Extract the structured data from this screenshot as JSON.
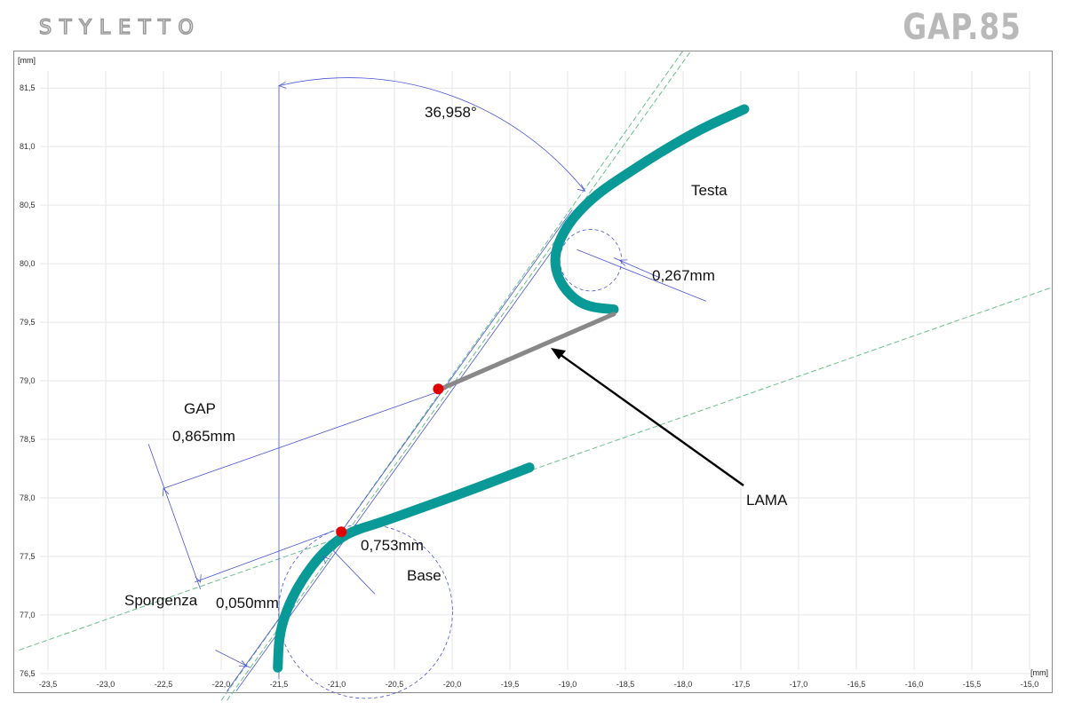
{
  "header": {
    "brand": "STYLETTO",
    "model": "GAP.85"
  },
  "axes": {
    "x_unit": "[mm]",
    "y_unit": "[mm]",
    "x_ticks": [
      "-23,5",
      "-23,0",
      "-22,5",
      "-22,0",
      "-21,5",
      "-21,0",
      "-20,5",
      "-20,0",
      "-19,5",
      "-19,0",
      "-18,5",
      "-18,0",
      "-17,5",
      "-17,0",
      "-16,5",
      "-16,0",
      "-15,5",
      "-15,0"
    ],
    "y_ticks": [
      "81,5",
      "81,0",
      "80,5",
      "80,0",
      "79,5",
      "79,0",
      "78,5",
      "78,0",
      "77,5",
      "77,0",
      "76,5"
    ]
  },
  "chart_data": {
    "type": "diagram",
    "xlim": [
      -23.8,
      -14.8
    ],
    "ylim": [
      76.34,
      81.82
    ],
    "grid": true,
    "x_ticks": [
      -23.5,
      -23.0,
      -22.5,
      -22.0,
      -21.5,
      -21.0,
      -20.5,
      -20.0,
      -19.5,
      -19.0,
      -18.5,
      -18.0,
      -17.5,
      -17.0,
      -16.5,
      -16.0,
      -15.5,
      -15.0
    ],
    "y_ticks": [
      81.5,
      81.0,
      80.5,
      80.0,
      79.5,
      79.0,
      78.5,
      78.0,
      77.5,
      77.0,
      76.5
    ],
    "testa_curve": [
      [
        -17.47,
        81.32
      ],
      [
        -17.85,
        81.15
      ],
      [
        -18.2,
        80.95
      ],
      [
        -18.5,
        80.76
      ],
      [
        -18.74,
        80.6
      ],
      [
        -18.93,
        80.42
      ],
      [
        -19.05,
        80.25
      ],
      [
        -19.12,
        80.05
      ],
      [
        -19.08,
        79.86
      ],
      [
        -18.96,
        79.71
      ],
      [
        -18.82,
        79.63
      ],
      [
        -18.6,
        79.61
      ]
    ],
    "base_curve": [
      [
        -19.33,
        78.26
      ],
      [
        -19.8,
        78.08
      ],
      [
        -20.25,
        77.92
      ],
      [
        -20.62,
        77.79
      ],
      [
        -20.82,
        77.73
      ],
      [
        -20.95,
        77.67
      ],
      [
        -21.1,
        77.55
      ],
      [
        -21.23,
        77.4
      ],
      [
        -21.36,
        77.2
      ],
      [
        -21.45,
        77.0
      ],
      [
        -21.5,
        76.8
      ],
      [
        -21.51,
        76.55
      ]
    ],
    "lama": [
      [
        -18.6,
        79.57
      ],
      [
        -20.1,
        78.93
      ]
    ],
    "contact_points": [
      [
        -20.12,
        78.93
      ],
      [
        -20.96,
        77.71
      ]
    ],
    "testa_circle": {
      "center": [
        -18.8,
        80.03
      ],
      "radius": 0.267
    },
    "base_circle": {
      "center": [
        -20.75,
        77.03
      ],
      "radius": 0.753
    },
    "angle_deg": 36.958,
    "dimensions": {
      "angle": "36,958°",
      "testa_radius": "0,267mm",
      "gap": "0,865mm",
      "base_radius": "0,753mm",
      "sporgenza": "0,050mm"
    },
    "labels": {
      "testa": "Testa",
      "lama": "LAMA",
      "gap": "GAP",
      "base": "Base",
      "sporgenza": "Sporgenza"
    },
    "colors": {
      "blade_profile": "#099a97",
      "lama": "#888888",
      "construction": "#4a55d6",
      "guide": "#6abf8a",
      "contact": "#e00000",
      "grid": "#e6e6e6"
    }
  }
}
